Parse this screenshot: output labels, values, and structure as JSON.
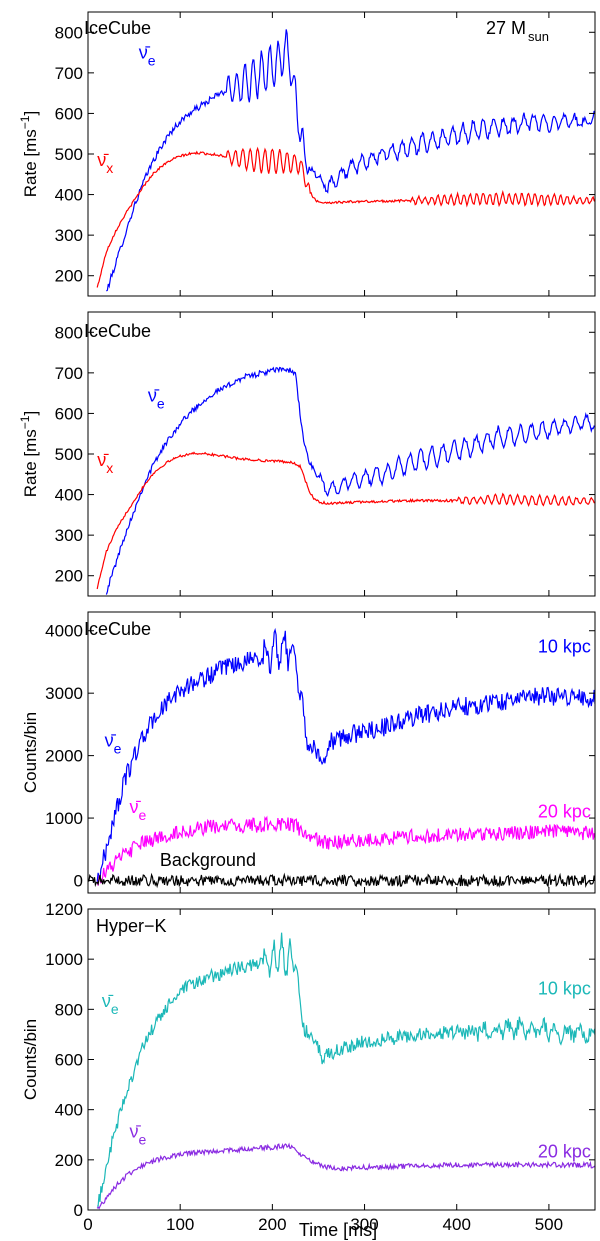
{
  "figure": {
    "progenitor_label_main": "27 M",
    "progenitor_label_sub": "sun",
    "xlabel": "Time [ms]"
  },
  "colors": {
    "nue_bar": "#0000ff",
    "nux_bar": "#ff0000",
    "nue_bar_20kpc_icecube": "#ff00ff",
    "background": "#000000",
    "hk_10kpc": "#1cb8b8",
    "hk_20kpc": "#8a2be2",
    "axes": "#000000"
  },
  "chart_data": [
    {
      "type": "line",
      "detector": "IceCube",
      "ylabel": "Rate [ms",
      "ylabel_sup": "−1",
      "ylabel_end": "]",
      "xlim": [
        0,
        550
      ],
      "ylim": [
        150,
        850
      ],
      "xticks": [
        0,
        100,
        200,
        300,
        400,
        500
      ],
      "yticks": [
        200,
        300,
        400,
        500,
        600,
        700,
        800
      ],
      "xticklabels_shown": false,
      "annotations": [
        {
          "text_main": "ν̄",
          "text_sub": "e",
          "color_key": "nue_bar",
          "at": [
            55,
            735
          ]
        },
        {
          "text_main": "ν̄",
          "text_sub": "x",
          "color_key": "nux_bar",
          "at": [
            10,
            470
          ]
        }
      ],
      "series": [
        {
          "color_key": "nue_bar",
          "noise": 8,
          "osc": [
            [
              150,
              240,
              55,
              9
            ],
            [
              250,
              550,
              22,
              11
            ]
          ],
          "x": [
            20,
            30,
            40,
            50,
            60,
            70,
            80,
            90,
            100,
            110,
            120,
            130,
            140,
            150,
            160,
            170,
            180,
            190,
            200,
            210,
            215,
            220,
            225,
            230,
            235,
            240,
            250,
            260,
            270,
            280,
            300,
            320,
            340,
            360,
            380,
            400,
            420,
            440,
            460,
            480,
            500,
            520,
            540,
            550
          ],
          "y": [
            160,
            230,
            300,
            370,
            430,
            480,
            520,
            555,
            580,
            600,
            615,
            630,
            645,
            655,
            665,
            675,
            690,
            700,
            715,
            735,
            760,
            720,
            640,
            560,
            500,
            470,
            440,
            420,
            440,
            460,
            480,
            500,
            510,
            525,
            535,
            545,
            560,
            565,
            570,
            580,
            575,
            585,
            575,
            590
          ]
        },
        {
          "color_key": "nux_bar",
          "noise": 3,
          "osc": [
            [
              150,
              240,
              30,
              8
            ],
            [
              350,
              550,
              14,
              7
            ]
          ],
          "x": [
            10,
            20,
            30,
            40,
            50,
            60,
            70,
            80,
            90,
            100,
            110,
            120,
            140,
            160,
            180,
            200,
            220,
            230,
            235,
            240,
            245,
            250,
            260,
            280,
            300,
            350,
            400,
            450,
            500,
            550
          ],
          "y": [
            170,
            260,
            310,
            350,
            385,
            420,
            450,
            470,
            485,
            495,
            500,
            503,
            498,
            490,
            485,
            483,
            478,
            475,
            445,
            410,
            390,
            382,
            380,
            382,
            383,
            385,
            388,
            390,
            388,
            385
          ]
        }
      ]
    },
    {
      "type": "line",
      "detector": "IceCube",
      "ylabel": "Rate [ms",
      "ylabel_sup": "−1",
      "ylabel_end": "]",
      "xlim": [
        0,
        550
      ],
      "ylim": [
        150,
        850
      ],
      "xticks": [
        0,
        100,
        200,
        300,
        400,
        500
      ],
      "yticks": [
        200,
        300,
        400,
        500,
        600,
        700,
        800
      ],
      "xticklabels_shown": false,
      "annotations": [
        {
          "text_main": "ν̄",
          "text_sub": "e",
          "color_key": "nue_bar",
          "at": [
            65,
            630
          ]
        },
        {
          "text_main": "ν̄",
          "text_sub": "x",
          "color_key": "nux_bar",
          "at": [
            10,
            470
          ]
        }
      ],
      "series": [
        {
          "color_key": "nue_bar",
          "noise": 7,
          "osc": [
            [
              250,
              550,
              24,
              12
            ]
          ],
          "x": [
            20,
            30,
            40,
            50,
            60,
            70,
            80,
            90,
            100,
            110,
            120,
            130,
            140,
            150,
            160,
            170,
            180,
            190,
            200,
            210,
            220,
            225,
            230,
            235,
            240,
            250,
            260,
            280,
            300,
            320,
            340,
            360,
            380,
            400,
            420,
            440,
            460,
            480,
            500,
            520,
            540,
            550
          ],
          "y": [
            160,
            230,
            300,
            360,
            420,
            470,
            510,
            545,
            575,
            600,
            620,
            640,
            655,
            665,
            680,
            690,
            695,
            700,
            705,
            710,
            705,
            700,
            600,
            520,
            480,
            440,
            410,
            430,
            440,
            450,
            470,
            485,
            495,
            510,
            520,
            540,
            545,
            550,
            560,
            570,
            580,
            570
          ]
        },
        {
          "color_key": "nux_bar",
          "noise": 3,
          "osc": [
            [
              400,
              550,
              12,
              8
            ]
          ],
          "x": [
            10,
            20,
            30,
            40,
            50,
            60,
            70,
            80,
            90,
            100,
            110,
            120,
            140,
            160,
            180,
            200,
            220,
            230,
            235,
            240,
            245,
            250,
            260,
            280,
            300,
            350,
            400,
            450,
            500,
            550
          ],
          "y": [
            170,
            260,
            310,
            350,
            385,
            420,
            450,
            470,
            485,
            495,
            500,
            502,
            497,
            490,
            485,
            483,
            480,
            470,
            440,
            408,
            390,
            382,
            378,
            380,
            382,
            385,
            385,
            388,
            385,
            383
          ]
        }
      ]
    },
    {
      "type": "line",
      "detector": "IceCube",
      "ylabel": "Counts/bin",
      "xlim": [
        0,
        550
      ],
      "ylim": [
        -200,
        4300
      ],
      "xticks": [
        0,
        100,
        200,
        300,
        400,
        500
      ],
      "yticks": [
        0,
        1000,
        2000,
        3000,
        4000
      ],
      "xticklabels_shown": false,
      "annotations": [
        {
          "text_main": "ν̄",
          "text_sub": "e",
          "color_key": "nue_bar",
          "at": [
            18,
            2150
          ]
        },
        {
          "text_main": "ν̄",
          "text_sub": "e",
          "color_key": "nue_bar_20kpc_icecube",
          "at": [
            45,
            1080
          ]
        },
        {
          "text_main": "10 kpc",
          "color_key": "nue_bar",
          "at": [
            488,
            3650
          ]
        },
        {
          "text_main": "20 kpc",
          "color_key": "nue_bar_20kpc_icecube",
          "at": [
            488,
            1010
          ]
        },
        {
          "text_main": "Background",
          "color_key": "background",
          "at": [
            78,
            230
          ]
        }
      ],
      "series": [
        {
          "name": "10 kpc",
          "color_key": "nue_bar",
          "noise": 150,
          "osc": [
            [
              180,
              240,
              250,
              10
            ]
          ],
          "x": [
            10,
            20,
            30,
            40,
            50,
            60,
            70,
            80,
            90,
            100,
            120,
            140,
            160,
            180,
            200,
            210,
            220,
            225,
            230,
            235,
            240,
            250,
            255,
            260,
            280,
            300,
            320,
            340,
            360,
            380,
            400,
            420,
            440,
            460,
            480,
            500,
            520,
            540,
            550
          ],
          "y": [
            0,
            500,
            1100,
            1600,
            2000,
            2300,
            2550,
            2750,
            2900,
            3050,
            3200,
            3350,
            3450,
            3550,
            3650,
            3750,
            3700,
            3650,
            3000,
            2500,
            2200,
            2000,
            1900,
            2200,
            2300,
            2400,
            2450,
            2550,
            2650,
            2700,
            2800,
            2800,
            2850,
            2900,
            2950,
            2950,
            2950,
            2950,
            2900
          ]
        },
        {
          "name": "20 kpc",
          "color_key": "nue_bar_20kpc_icecube",
          "noise": 120,
          "osc": [],
          "x": [
            10,
            20,
            30,
            40,
            50,
            60,
            80,
            100,
            120,
            140,
            160,
            180,
            200,
            215,
            225,
            230,
            240,
            250,
            260,
            280,
            300,
            350,
            400,
            450,
            500,
            550
          ],
          "y": [
            0,
            150,
            300,
            420,
            520,
            600,
            700,
            780,
            830,
            860,
            870,
            880,
            900,
            920,
            880,
            800,
            700,
            630,
            600,
            620,
            650,
            700,
            730,
            760,
            780,
            760
          ]
        },
        {
          "name": "Background",
          "color_key": "background",
          "noise": 90,
          "osc": [],
          "x": [
            0,
            550
          ],
          "y": [
            0,
            0
          ]
        }
      ]
    },
    {
      "type": "line",
      "detector": "Hyper−K",
      "ylabel": "Counts/bin",
      "xlabel": "Time [ms]",
      "xlim": [
        0,
        550
      ],
      "ylim": [
        0,
        1200
      ],
      "xticks": [
        0,
        100,
        200,
        300,
        400,
        500
      ],
      "yticks": [
        0,
        200,
        400,
        600,
        800,
        1000,
        1200
      ],
      "xticklabels_shown": true,
      "annotations": [
        {
          "text_main": "ν̄",
          "text_sub": "e",
          "color_key": "hk_10kpc",
          "at": [
            15,
            810
          ]
        },
        {
          "text_main": "ν̄",
          "text_sub": "e",
          "color_key": "hk_20kpc",
          "at": [
            45,
            290
          ]
        },
        {
          "text_main": "10 kpc",
          "color_key": "hk_10kpc",
          "at": [
            488,
            860
          ]
        },
        {
          "text_main": "20 kpc",
          "color_key": "hk_20kpc",
          "at": [
            488,
            210
          ]
        }
      ],
      "series": [
        {
          "name": "10 kpc",
          "color_key": "hk_10kpc",
          "noise": 28,
          "osc": [
            [
              190,
              230,
              70,
              9
            ],
            [
              400,
              550,
              25,
              13
            ]
          ],
          "x": [
            10,
            20,
            30,
            40,
            50,
            60,
            70,
            80,
            90,
            100,
            120,
            140,
            160,
            180,
            200,
            210,
            220,
            225,
            230,
            235,
            240,
            250,
            255,
            260,
            280,
            300,
            320,
            340,
            360,
            380,
            400,
            420,
            440,
            460,
            480,
            500,
            520,
            540,
            550
          ],
          "y": [
            0,
            180,
            320,
            450,
            560,
            650,
            720,
            780,
            830,
            870,
            910,
            940,
            960,
            980,
            1000,
            1010,
            1000,
            980,
            800,
            720,
            700,
            640,
            600,
            620,
            650,
            670,
            680,
            690,
            700,
            705,
            710,
            715,
            720,
            720,
            720,
            715,
            705,
            700,
            700
          ]
        },
        {
          "name": "20 kpc",
          "color_key": "hk_20kpc",
          "noise": 10,
          "osc": [],
          "x": [
            10,
            20,
            30,
            40,
            50,
            60,
            80,
            100,
            120,
            140,
            160,
            180,
            200,
            210,
            220,
            230,
            240,
            250,
            260,
            280,
            300,
            350,
            400,
            450,
            500,
            550
          ],
          "y": [
            0,
            50,
            95,
            130,
            160,
            180,
            205,
            220,
            230,
            235,
            240,
            245,
            250,
            255,
            255,
            225,
            200,
            185,
            170,
            165,
            170,
            175,
            180,
            180,
            180,
            178
          ]
        }
      ]
    }
  ]
}
